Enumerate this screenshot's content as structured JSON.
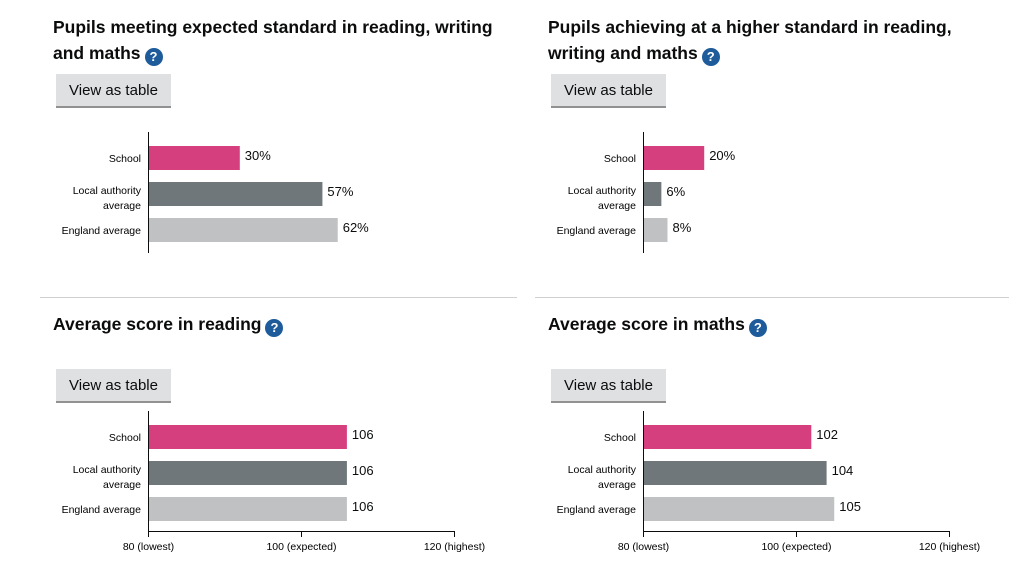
{
  "view_table_label": "View as table",
  "help_icon_text": "?",
  "colors": {
    "school": "#d53f7e",
    "local_authority": "#6f777b",
    "england": "#bfc1c3",
    "help": "#1d5b9a"
  },
  "chart_data": [
    {
      "type": "bar",
      "title": "Pupils meeting expected standard in reading, writing and maths",
      "unit": "%",
      "xlim": [
        0,
        100
      ],
      "categories": [
        "School",
        "Local authority average",
        "England average"
      ],
      "values": [
        30,
        57,
        62
      ],
      "labels": [
        "30%",
        "57%",
        "62%"
      ],
      "ticks": []
    },
    {
      "type": "bar",
      "title": "Pupils achieving at a higher standard in reading, writing and maths",
      "unit": "%",
      "xlim": [
        0,
        100
      ],
      "categories": [
        "School",
        "Local authority average",
        "England average"
      ],
      "values": [
        20,
        6,
        8
      ],
      "labels": [
        "20%",
        "6%",
        "8%"
      ],
      "ticks": []
    },
    {
      "type": "bar",
      "title": "Average score in reading",
      "unit": "",
      "xlim": [
        80,
        120
      ],
      "categories": [
        "School",
        "Local authority average",
        "England average"
      ],
      "values": [
        106,
        106,
        106
      ],
      "labels": [
        "106",
        "106",
        "106"
      ],
      "ticks": [
        {
          "value": 80,
          "label": "80 (lowest)"
        },
        {
          "value": 100,
          "label": "100 (expected)"
        },
        {
          "value": 120,
          "label": "120 (highest)"
        }
      ]
    },
    {
      "type": "bar",
      "title": "Average score in maths",
      "unit": "",
      "xlim": [
        80,
        120
      ],
      "categories": [
        "School",
        "Local authority average",
        "England average"
      ],
      "values": [
        102,
        104,
        105
      ],
      "labels": [
        "102",
        "104",
        "105"
      ],
      "ticks": [
        {
          "value": 80,
          "label": "80 (lowest)"
        },
        {
          "value": 100,
          "label": "100 (expected)"
        },
        {
          "value": 120,
          "label": "120 (highest)"
        }
      ]
    }
  ]
}
